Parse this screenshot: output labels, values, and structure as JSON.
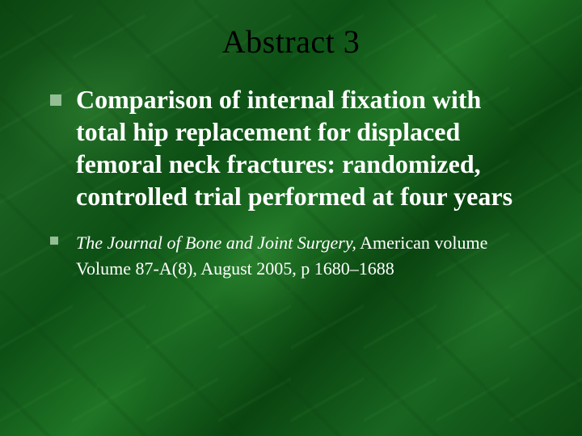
{
  "slide": {
    "title": "Abstract 3",
    "title_color": "#000000",
    "title_fontsize": 40,
    "background_base": "#0d5015",
    "bullet_color": "#94be94",
    "text_color": "#ffffff",
    "bullets": [
      {
        "level": "main",
        "text": "Comparison of internal fixation with total hip replacement for displaced femoral neck fractures: randomized, controlled trial performed at four years",
        "fontsize": 32,
        "bold": true
      },
      {
        "level": "sub",
        "italic_prefix": "The Journal of Bone and Joint Surgery,",
        "rest": " American volume Volume 87-A(8), August 2005, p 1680–1688",
        "fontsize": 22,
        "bold": false
      }
    ]
  }
}
